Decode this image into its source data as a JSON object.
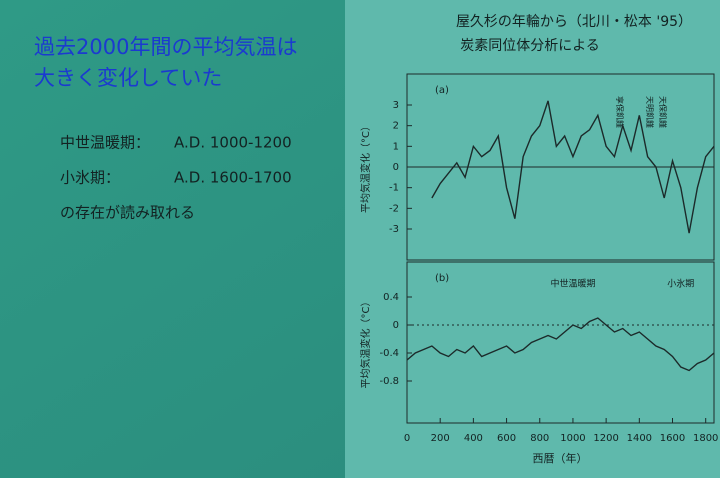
{
  "slide": {
    "title_lines": [
      "過去2000年間の平均気温は",
      "大きく変化していた"
    ],
    "periods": [
      {
        "name": "中世温暖期：",
        "range": "A.D. 1000-1200"
      },
      {
        "name": "小氷期：",
        "range": "A.D. 1600-1700"
      }
    ],
    "conclusion": "の存在が読み取れる",
    "source_lines": [
      "屋久杉の年輪から（北川・松本 '95）",
      "炭素同位体分析による"
    ]
  },
  "chart_data": [
    {
      "type": "line",
      "panel_label": "(a)",
      "ylabel": "平均気温変化（°C）",
      "annotations": [
        "享保飢饉",
        "天明飢饉",
        "天保飢饉"
      ],
      "x": [
        150,
        200,
        250,
        300,
        350,
        400,
        450,
        500,
        550,
        600,
        650,
        700,
        750,
        800,
        850,
        900,
        950,
        1000,
        1050,
        1100,
        1150,
        1200,
        1250,
        1300,
        1350,
        1400,
        1450,
        1500,
        1550,
        1600,
        1650,
        1700,
        1750,
        1800,
        1850
      ],
      "series": [
        {
          "color": "#1c2a2a",
          "values": [
            -1.5,
            -0.8,
            -0.3,
            0.2,
            -0.5,
            1.0,
            0.5,
            0.8,
            1.5,
            -1.0,
            -2.5,
            0.5,
            1.5,
            2.0,
            3.2,
            1.0,
            1.5,
            0.5,
            1.5,
            1.8,
            2.5,
            1.0,
            0.5,
            2.0,
            0.8,
            2.5,
            0.5,
            0.0,
            -1.5,
            0.3,
            -1.0,
            -3.2,
            -1.0,
            0.5,
            1.0
          ]
        }
      ],
      "xlim": [
        0,
        1850
      ],
      "ylim": [
        -4.5,
        4.5
      ],
      "yticks": [
        -3,
        -2,
        -1,
        0,
        1,
        2,
        3
      ],
      "zero_line": true
    },
    {
      "type": "line",
      "panel_label": "(b)",
      "ylabel": "平均気温変化（°C）",
      "xlabel": "西暦（年）",
      "annotations": [
        "中世温暖期",
        "小氷期"
      ],
      "x": [
        0,
        50,
        100,
        150,
        200,
        250,
        300,
        350,
        400,
        450,
        500,
        550,
        600,
        650,
        700,
        750,
        800,
        850,
        900,
        950,
        1000,
        1050,
        1100,
        1150,
        1200,
        1250,
        1300,
        1350,
        1400,
        1450,
        1500,
        1550,
        1600,
        1650,
        1700,
        1750,
        1800,
        1850
      ],
      "series": [
        {
          "color": "#1c2a2a",
          "values": [
            -0.5,
            -0.4,
            -0.35,
            -0.3,
            -0.4,
            -0.45,
            -0.35,
            -0.4,
            -0.3,
            -0.45,
            -0.4,
            -0.35,
            -0.3,
            -0.4,
            -0.35,
            -0.25,
            -0.2,
            -0.15,
            -0.2,
            -0.1,
            0.0,
            -0.05,
            0.05,
            0.1,
            0.0,
            -0.1,
            -0.05,
            -0.15,
            -0.1,
            -0.2,
            -0.3,
            -0.35,
            -0.45,
            -0.6,
            -0.65,
            -0.55,
            -0.5,
            -0.4
          ]
        }
      ],
      "xlim": [
        0,
        1850
      ],
      "ylim": [
        -1.4,
        0.9
      ],
      "yticks": [
        -0.8,
        -0.4,
        0,
        0.4
      ],
      "xticks": [
        0,
        200,
        400,
        600,
        800,
        1000,
        1200,
        1400,
        1600,
        1800
      ],
      "dotted_zero": true
    }
  ]
}
